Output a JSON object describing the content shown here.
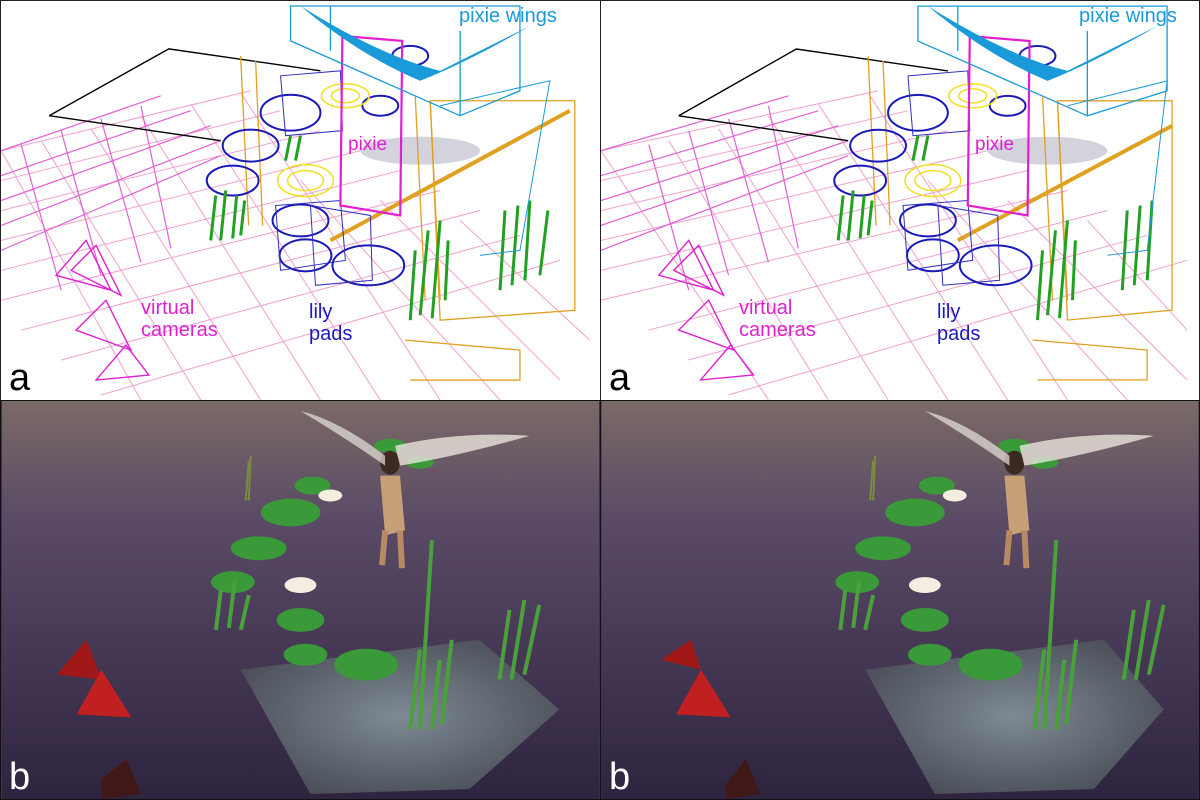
{
  "panels": {
    "top_left": {
      "letter": "a",
      "labels": {
        "virtual_cameras": "virtual\ncameras",
        "lily_pads": "lily\npads",
        "pixie": "pixie",
        "pixie_wings": "pixie wings"
      }
    },
    "top_right": {
      "letter": "a",
      "labels": {
        "virtual_cameras": "virtual\ncameras",
        "lily_pads": "lily\npads",
        "pixie": "pixie",
        "pixie_wings": "pixie wings"
      }
    },
    "bottom_left": {
      "letter": "b"
    },
    "bottom_right": {
      "letter": "b"
    }
  },
  "colors": {
    "cameras": "#e020d0",
    "lily_pads": "#1a1ab8",
    "pixie_box": "#e020d0",
    "wings": "#1a9ad8",
    "reeds_frame": "#e0a020",
    "plants": "#22a022",
    "flowers": "#f0e020",
    "water_grid": "#f0a0d0",
    "water": "#3c3050",
    "camera_render": "#c02020"
  }
}
